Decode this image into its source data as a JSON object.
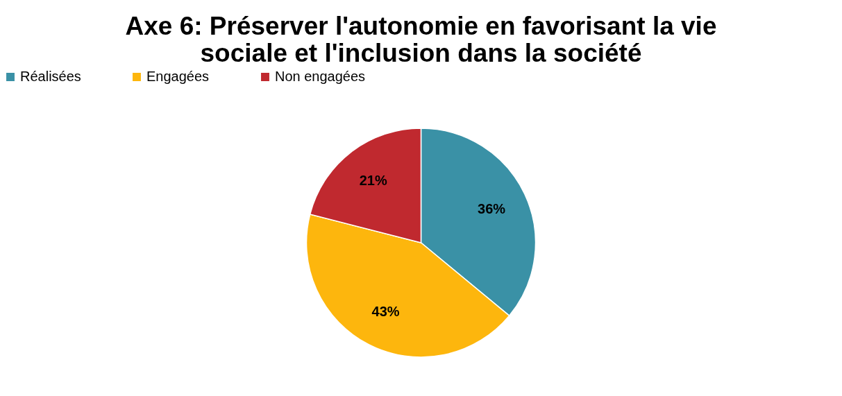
{
  "chart_data": {
    "type": "pie",
    "title": [
      "Axe 6: Préserver l'autonomie en favorisant la vie",
      "sociale et l'inclusion dans la société"
    ],
    "categories": [
      "Réalisées",
      "Engagées",
      "Non engagées"
    ],
    "values": [
      36,
      43,
      21
    ],
    "colors": [
      "#3a91a6",
      "#fdb60d",
      "#c0292f"
    ],
    "value_labels": [
      "36%",
      "43%",
      "21%"
    ],
    "legend": "top"
  }
}
